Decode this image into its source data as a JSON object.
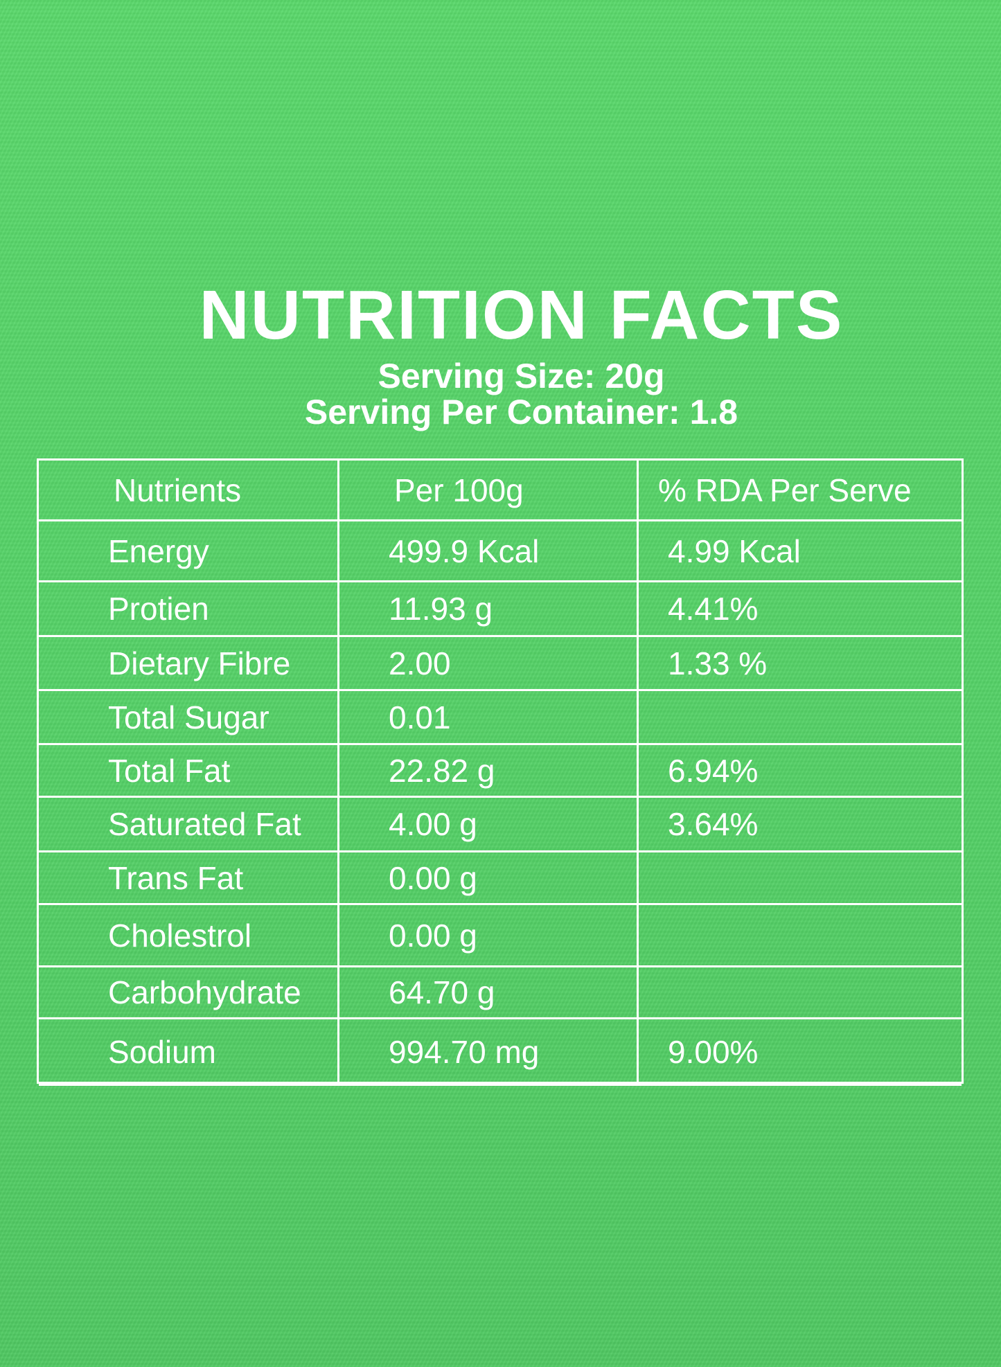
{
  "title": "NUTRITION FACTS",
  "serving_size": "Serving Size: 20g",
  "serving_per_container": "Serving Per Container: 1.8",
  "table": {
    "headers": [
      "Nutrients",
      "Per 100g",
      "% RDA Per Serve"
    ],
    "rows": [
      [
        "Energy",
        "499.9 Kcal",
        "4.99 Kcal"
      ],
      [
        "Protien",
        "11.93 g",
        "4.41%"
      ],
      [
        "Dietary Fibre",
        "2.00",
        "1.33 %"
      ],
      [
        "Total Sugar",
        "0.01",
        ""
      ],
      [
        "Total Fat",
        "22.82 g",
        "6.94%"
      ],
      [
        "Saturated Fat",
        "4.00 g",
        "3.64%"
      ],
      [
        "Trans Fat",
        "0.00 g",
        ""
      ],
      [
        "Cholestrol",
        "0.00 g",
        ""
      ],
      [
        "Carbohydrate",
        "64.70 g",
        ""
      ],
      [
        "Sodium",
        "994.70 mg",
        "9.00%"
      ]
    ]
  }
}
